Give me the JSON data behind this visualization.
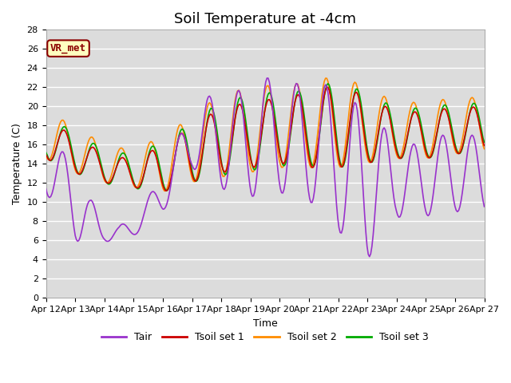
{
  "title": "Soil Temperature at -4cm",
  "xlabel": "Time",
  "ylabel": "Temperature (C)",
  "ylim": [
    0,
    28
  ],
  "tick_labels": [
    "Apr 12",
    "Apr 13",
    "Apr 14",
    "Apr 15",
    "Apr 16",
    "Apr 17",
    "Apr 18",
    "Apr 19",
    "Apr 20",
    "Apr 21",
    "Apr 22",
    "Apr 23",
    "Apr 24",
    "Apr 25",
    "Apr 26",
    "Apr 27"
  ],
  "colors": {
    "Tair": "#9932CC",
    "Tsoil1": "#CC0000",
    "Tsoil2": "#FF8C00",
    "Tsoil3": "#00AA00"
  },
  "legend_labels": [
    "Tair",
    "Tsoil set 1",
    "Tsoil set 2",
    "Tsoil set 3"
  ],
  "annotation_text": "VR_met",
  "annotation_color": "#8B0000",
  "annotation_bg": "#FFFFC0",
  "background_color": "#DCDCDC",
  "grid_color": "#FFFFFF",
  "title_fontsize": 13,
  "axis_fontsize": 9,
  "tick_fontsize": 8
}
